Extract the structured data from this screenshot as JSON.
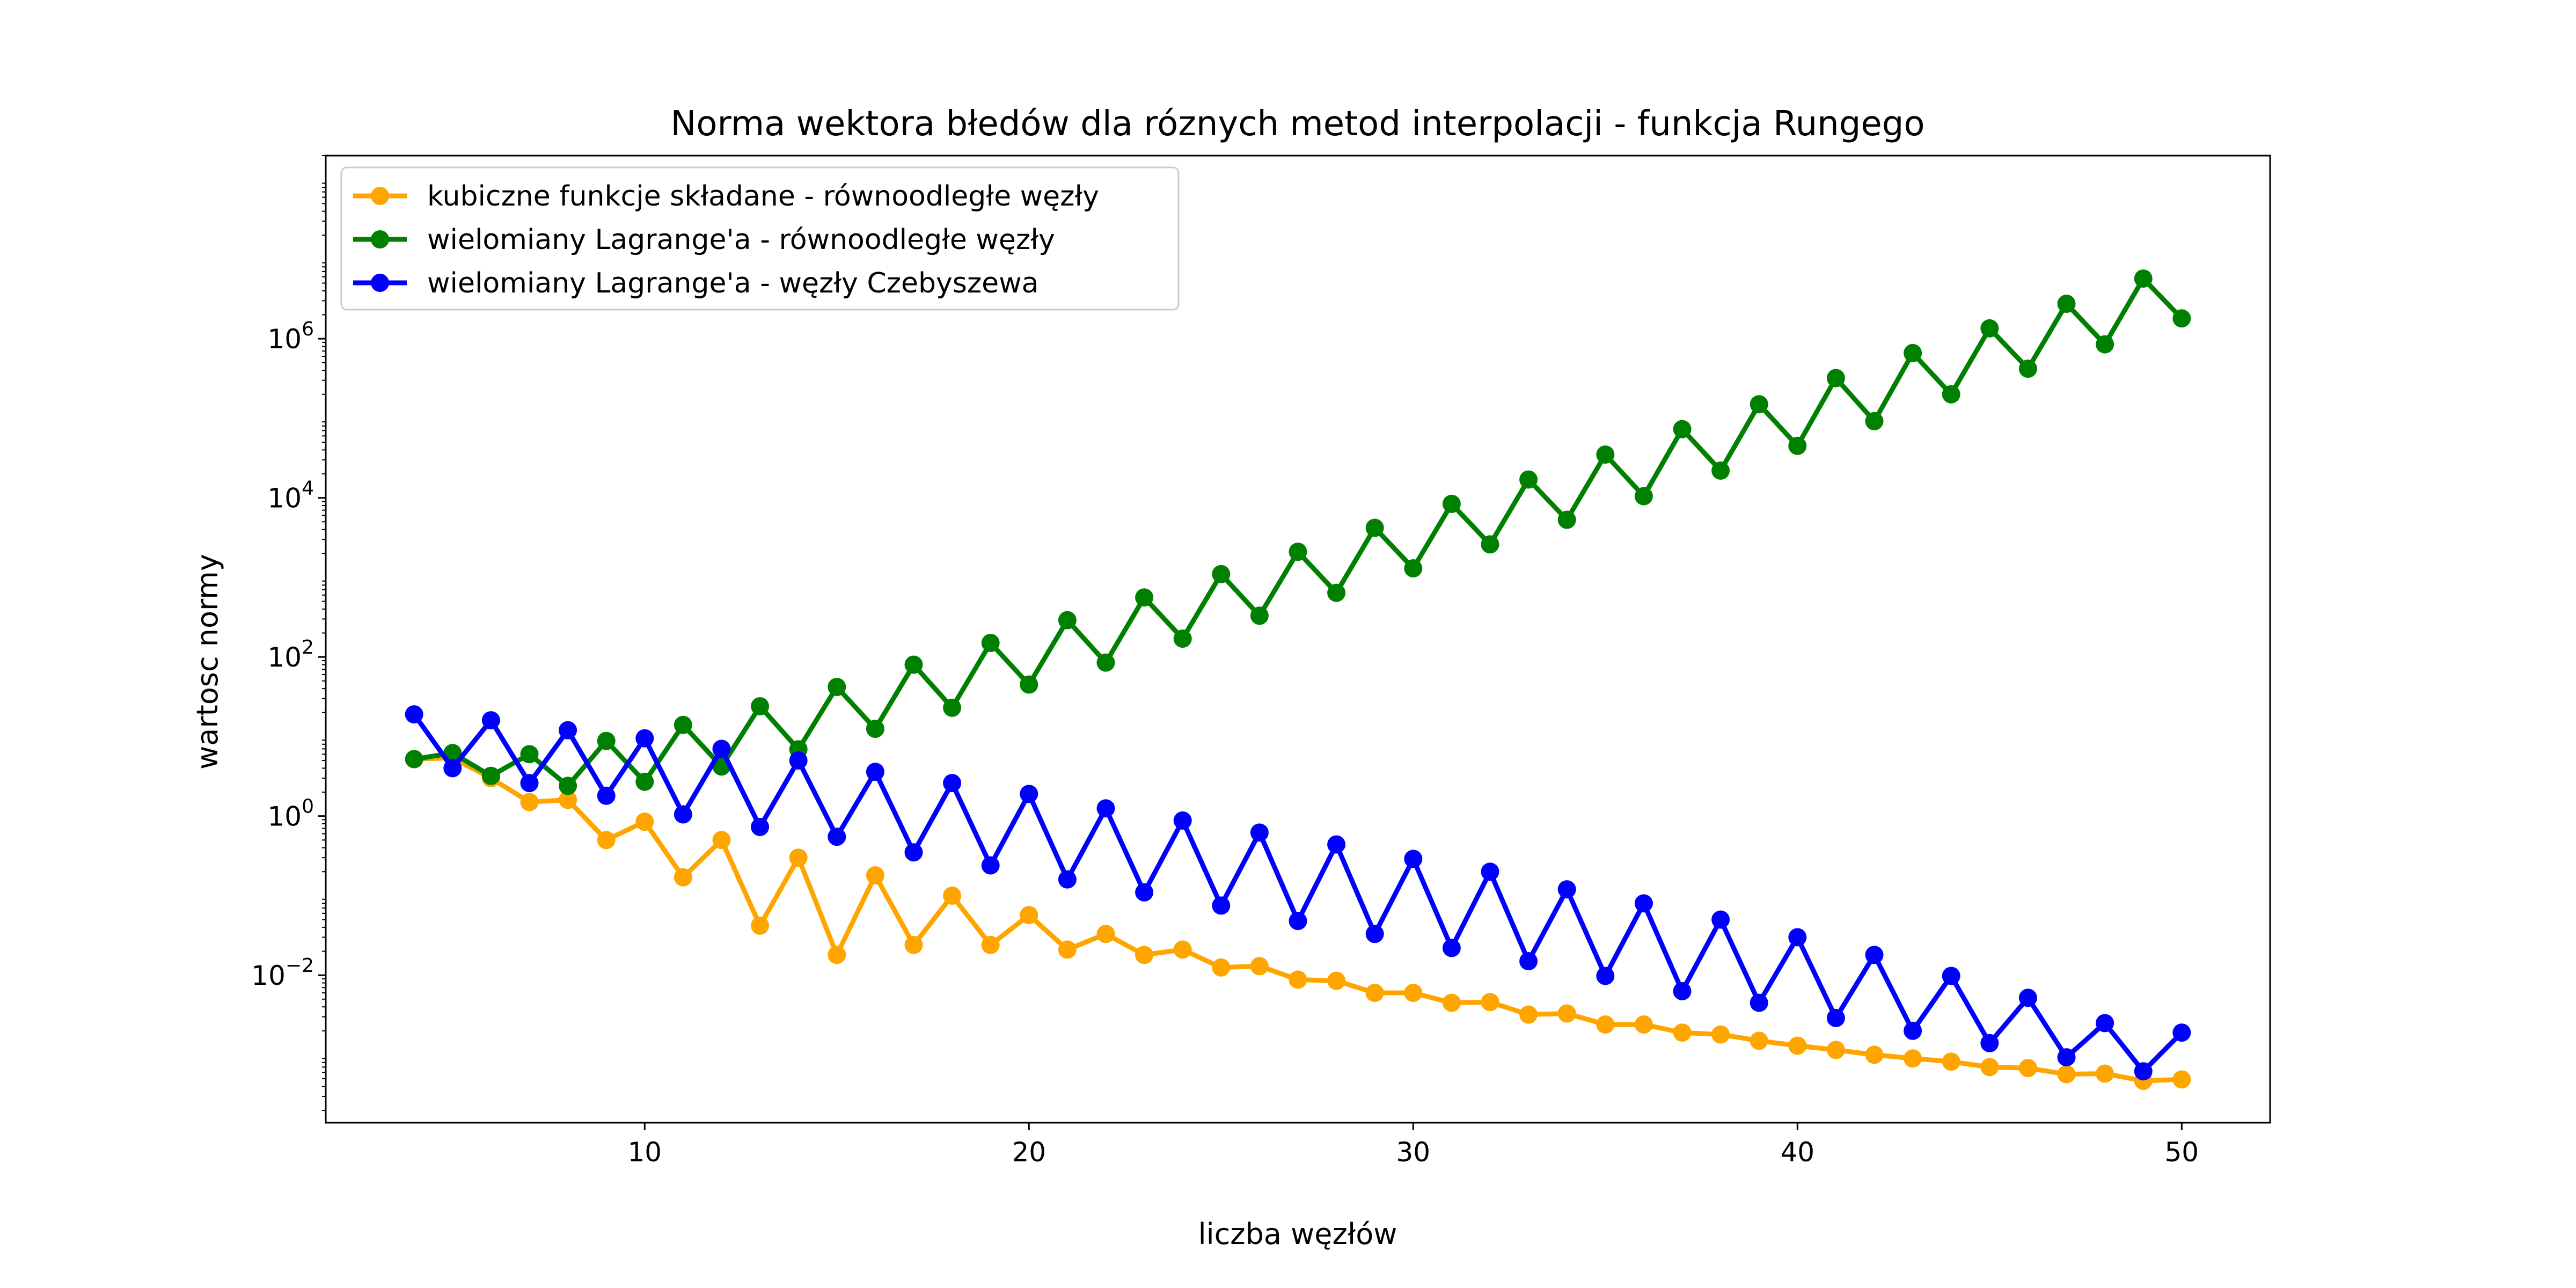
{
  "chart_data": {
    "type": "line",
    "title": "Norma wektora błedów dla róznych metod interpolacji - funkcja Rungego",
    "xlabel": "liczba węzłów",
    "ylabel": "wartosc normy",
    "xlim": [
      1.7,
      52.3
    ],
    "ylim": [
      0.00014,
      200000000
    ],
    "yscale": "log",
    "grid": false,
    "legend_position": "top-left",
    "xticks": [
      10,
      20,
      30,
      40,
      50
    ],
    "xtick_labels": [
      "10",
      "20",
      "30",
      "40",
      "50"
    ],
    "yticks": [
      {
        "value": 0.01,
        "base": "10",
        "exp": "−2"
      },
      {
        "value": 1,
        "base": "10",
        "exp": "0"
      },
      {
        "value": 100,
        "base": "10",
        "exp": "2"
      },
      {
        "value": 10000,
        "base": "10",
        "exp": "4"
      },
      {
        "value": 1000000,
        "base": "10",
        "exp": "6"
      }
    ],
    "x": [
      4,
      5,
      6,
      7,
      8,
      9,
      10,
      11,
      12,
      13,
      14,
      15,
      16,
      17,
      18,
      19,
      20,
      21,
      22,
      23,
      24,
      25,
      26,
      27,
      28,
      29,
      30,
      31,
      32,
      33,
      34,
      35,
      36,
      37,
      38,
      39,
      40,
      41,
      42,
      43,
      44,
      45,
      46,
      47,
      48,
      49,
      50
    ],
    "series": [
      {
        "name": "kubiczne funkcje składane - równoodległe węzły",
        "color": "#FFA500",
        "values": [
          5.2,
          5.4,
          3.0,
          1.5,
          1.6,
          0.5,
          0.85,
          0.17,
          0.5,
          0.042,
          0.3,
          0.018,
          0.18,
          0.024,
          0.1,
          0.024,
          0.057,
          0.021,
          0.033,
          0.018,
          0.021,
          0.0125,
          0.013,
          0.0088,
          0.0085,
          0.006,
          0.006,
          0.0045,
          0.0046,
          0.0032,
          0.0033,
          0.0024,
          0.0024,
          0.0019,
          0.0018,
          0.0015,
          0.0013,
          0.00115,
          0.001,
          0.0009,
          0.00082,
          0.0007,
          0.00068,
          0.00057,
          0.00058,
          0.00047,
          0.00049
        ]
      },
      {
        "name": "wielomiany Lagrange'a - równoodległe węzły",
        "color": "#008000",
        "values": [
          5.2,
          6.2,
          3.2,
          6.0,
          2.4,
          8.8,
          2.7,
          14,
          4.2,
          24,
          6.9,
          42,
          12.5,
          80,
          23,
          150,
          45,
          290,
          85,
          560,
          170,
          1100,
          330,
          2100,
          640,
          4200,
          1300,
          8400,
          2600,
          17000,
          5300,
          35000,
          10500,
          73000,
          22000,
          150000,
          45000,
          320000,
          92000,
          660000,
          200000,
          1350000,
          420000,
          2750000,
          850000,
          5700000,
          1800000
        ]
      },
      {
        "name": "wielomiany Lagrange'a - węzły Czebyszewa",
        "color": "#0000FF",
        "values": [
          19,
          4.0,
          16,
          2.6,
          12,
          1.8,
          9.5,
          1.05,
          7.0,
          0.73,
          5.0,
          0.55,
          3.6,
          0.35,
          2.6,
          0.24,
          1.9,
          0.16,
          1.25,
          0.11,
          0.88,
          0.075,
          0.62,
          0.048,
          0.44,
          0.033,
          0.29,
          0.022,
          0.2,
          0.015,
          0.12,
          0.0098,
          0.08,
          0.0063,
          0.05,
          0.0045,
          0.03,
          0.0029,
          0.018,
          0.002,
          0.0098,
          0.0014,
          0.0052,
          0.00093,
          0.0025,
          0.00062,
          0.0019
        ]
      }
    ]
  }
}
